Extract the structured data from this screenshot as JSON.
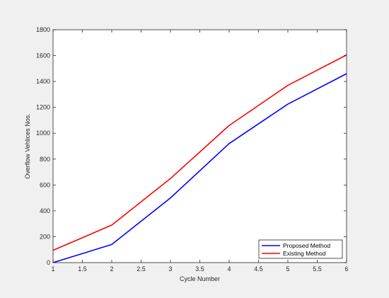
{
  "chart_data": {
    "type": "line",
    "title": "",
    "xlabel": "Cycle Number",
    "ylabel": "Overflow Vehlices Nos.",
    "xlim": [
      1,
      6
    ],
    "ylim": [
      0,
      1800
    ],
    "xticks": [
      1,
      1.5,
      2,
      2.5,
      3,
      3.5,
      4,
      4.5,
      5,
      5.5,
      6
    ],
    "xtick_labels": [
      "1",
      "1.5",
      "2",
      "2.5",
      "3",
      "3.5",
      "4",
      "4.5",
      "5",
      "5.5",
      "6"
    ],
    "yticks": [
      0,
      200,
      400,
      600,
      800,
      1000,
      1200,
      1400,
      1600,
      1800
    ],
    "ytick_labels": [
      "0",
      "200",
      "400",
      "600",
      "800",
      "1000",
      "1200",
      "1400",
      "1600",
      "1800"
    ],
    "grid": false,
    "legend_position": "bottom-right",
    "x": [
      1,
      2,
      3,
      4,
      5,
      6
    ],
    "series": [
      {
        "name": "Proposed Method",
        "color": "#0000ff",
        "values": [
          0,
          140,
          500,
          920,
          1225,
          1460
        ]
      },
      {
        "name": "Existing Method",
        "color": "#ff0000",
        "values": [
          95,
          290,
          650,
          1060,
          1370,
          1605
        ]
      }
    ]
  }
}
